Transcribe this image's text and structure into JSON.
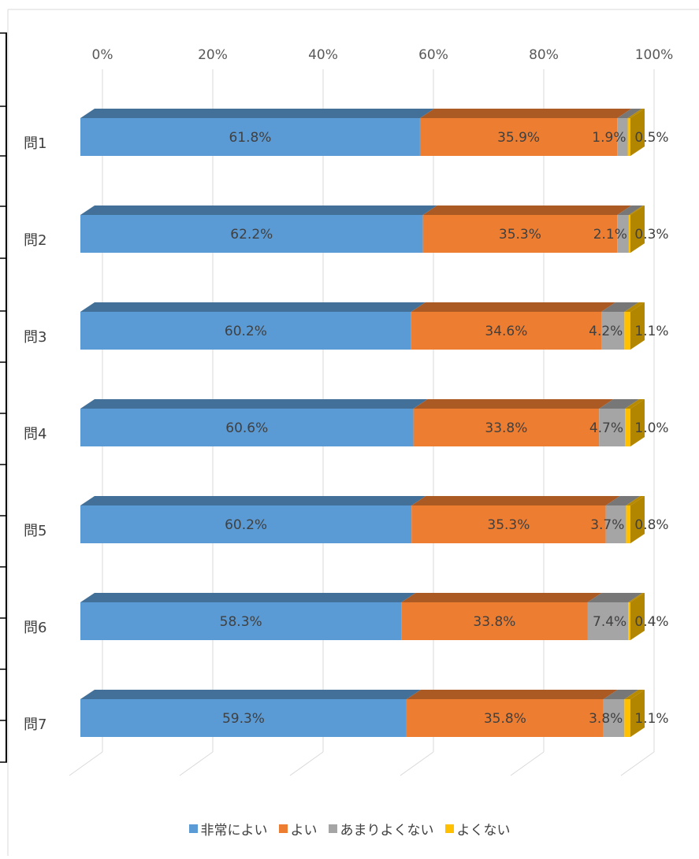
{
  "chart_data": {
    "type": "bar",
    "orientation": "horizontal",
    "stacked": "100%",
    "style": "3d",
    "categories": [
      "問1",
      "問2",
      "問3",
      "問4",
      "問5",
      "問6",
      "問7"
    ],
    "series": [
      {
        "name": "非常によい",
        "color": "#5b9bd5",
        "values": [
          61.8,
          62.2,
          60.2,
          60.6,
          60.2,
          58.3,
          59.3
        ]
      },
      {
        "name": "よい",
        "color": "#ed7d31",
        "values": [
          35.9,
          35.3,
          34.6,
          33.8,
          35.3,
          33.8,
          35.8
        ]
      },
      {
        "name": "あまりよくない",
        "color": "#a5a5a5",
        "values": [
          1.9,
          2.1,
          4.2,
          4.7,
          3.7,
          7.4,
          3.8
        ]
      },
      {
        "name": "よくない",
        "color": "#ffc000",
        "values": [
          0.5,
          0.3,
          1.1,
          1.0,
          0.8,
          0.4,
          1.1
        ]
      }
    ],
    "data_labels": [
      [
        "61.8%",
        "62.2%",
        "60.2%",
        "60.6%",
        "60.2%",
        "58.3%",
        "59.3%"
      ],
      [
        "35.9%",
        "35.3%",
        "34.6%",
        "33.8%",
        "35.3%",
        "33.8%",
        "35.8%"
      ],
      [
        "1.9%",
        "2.1%",
        "4.2%",
        "4.7%",
        "3.7%",
        "7.4%",
        "3.8%"
      ],
      [
        "0.5%",
        "0.3%",
        "1.1%",
        "1.0%",
        "0.8%",
        "0.4%",
        "1.1%"
      ]
    ],
    "x_ticks": [
      "0%",
      "20%",
      "40%",
      "60%",
      "80%",
      "100%"
    ],
    "xlim": [
      0,
      100
    ],
    "x_axis_position": "top",
    "grid": true,
    "legend": "bottom",
    "title": "",
    "xlabel": "",
    "ylabel": ""
  }
}
